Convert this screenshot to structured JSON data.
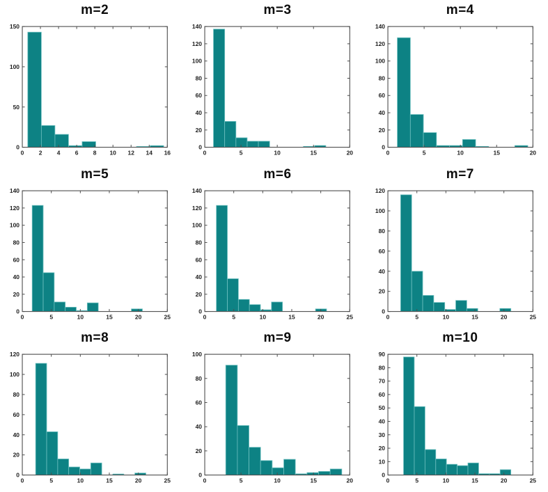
{
  "figure": {
    "background": "#ffffff",
    "bar_fill": "#0d8284",
    "bar_edge": "#6fc0c0",
    "axis_color": "#4d4d4d",
    "title_color": "#0d0d0d"
  },
  "chart_data": [
    {
      "type": "bar",
      "title": "m=2",
      "xlim": [
        0,
        16
      ],
      "ylim": [
        0,
        150
      ],
      "xticks": [
        0,
        2,
        4,
        6,
        8,
        10,
        12,
        14,
        16
      ],
      "yticks": [
        0,
        50,
        100,
        150
      ],
      "bin_start": 0.6,
      "bin_width": 1.5,
      "values": [
        143,
        27,
        16,
        2,
        7,
        0,
        0,
        0,
        1,
        2
      ],
      "xlabel": "",
      "ylabel": "",
      "grid": false,
      "legend": null
    },
    {
      "type": "bar",
      "title": "m=3",
      "xlim": [
        0,
        20
      ],
      "ylim": [
        0,
        140
      ],
      "xticks": [
        0,
        5,
        10,
        15,
        20
      ],
      "yticks": [
        0,
        20,
        40,
        60,
        80,
        100,
        120,
        140
      ],
      "bin_start": 1.2,
      "bin_width": 1.55,
      "values": [
        137,
        30,
        11,
        7,
        7,
        0,
        0,
        0,
        1,
        2
      ],
      "xlabel": "",
      "ylabel": "",
      "grid": false,
      "legend": null
    },
    {
      "type": "bar",
      "title": "m=4",
      "xlim": [
        0,
        20
      ],
      "ylim": [
        0,
        140
      ],
      "xticks": [
        0,
        5,
        10,
        15,
        20
      ],
      "yticks": [
        0,
        20,
        40,
        60,
        80,
        100,
        120,
        140
      ],
      "bin_start": 1.3,
      "bin_width": 1.8,
      "values": [
        127,
        38,
        17,
        2,
        2,
        9,
        1,
        0,
        0,
        2
      ],
      "xlabel": "",
      "ylabel": "",
      "grid": false,
      "legend": null
    },
    {
      "type": "bar",
      "title": "m=5",
      "xlim": [
        0,
        25
      ],
      "ylim": [
        0,
        140
      ],
      "xticks": [
        0,
        5,
        10,
        15,
        20,
        25
      ],
      "yticks": [
        0,
        20,
        40,
        60,
        80,
        100,
        120,
        140
      ],
      "bin_start": 1.7,
      "bin_width": 1.9,
      "values": [
        123,
        45,
        11,
        5,
        1,
        10,
        0,
        0,
        0,
        3
      ],
      "xlabel": "",
      "ylabel": "",
      "grid": false,
      "legend": null
    },
    {
      "type": "bar",
      "title": "m=6",
      "xlim": [
        0,
        25
      ],
      "ylim": [
        0,
        140
      ],
      "xticks": [
        0,
        5,
        10,
        15,
        20,
        25
      ],
      "yticks": [
        0,
        20,
        40,
        60,
        80,
        100,
        120,
        140
      ],
      "bin_start": 2.0,
      "bin_width": 1.9,
      "values": [
        123,
        38,
        14,
        8,
        2,
        11,
        0,
        0,
        0,
        3
      ],
      "xlabel": "",
      "ylabel": "",
      "grid": false,
      "legend": null
    },
    {
      "type": "bar",
      "title": "m=7",
      "xlim": [
        0,
        25
      ],
      "ylim": [
        0,
        120
      ],
      "xticks": [
        0,
        5,
        10,
        15,
        20,
        25
      ],
      "yticks": [
        0,
        20,
        40,
        60,
        80,
        100,
        120
      ],
      "bin_start": 2.2,
      "bin_width": 1.9,
      "values": [
        116,
        40,
        16,
        9,
        2,
        11,
        3,
        0,
        0,
        3
      ],
      "xlabel": "",
      "ylabel": "",
      "grid": false,
      "legend": null
    },
    {
      "type": "bar",
      "title": "m=8",
      "xlim": [
        0,
        25
      ],
      "ylim": [
        0,
        120
      ],
      "xticks": [
        0,
        5,
        10,
        15,
        20,
        25
      ],
      "yticks": [
        0,
        20,
        40,
        60,
        80,
        100,
        120
      ],
      "bin_start": 2.3,
      "bin_width": 1.9,
      "values": [
        111,
        43,
        16,
        8,
        6,
        12,
        0,
        1,
        0,
        2
      ],
      "xlabel": "",
      "ylabel": "",
      "grid": false,
      "legend": null
    },
    {
      "type": "bar",
      "title": "m=9",
      "xlim": [
        0,
        20
      ],
      "ylim": [
        0,
        100
      ],
      "xticks": [
        0,
        5,
        10,
        15,
        20
      ],
      "yticks": [
        0,
        20,
        40,
        60,
        80,
        100
      ],
      "bin_start": 2.9,
      "bin_width": 1.6,
      "values": [
        91,
        41,
        23,
        12,
        6,
        13,
        1,
        2,
        3,
        5
      ],
      "xlabel": "",
      "ylabel": "",
      "grid": false,
      "legend": null
    },
    {
      "type": "bar",
      "title": "m=10",
      "xlim": [
        0,
        25
      ],
      "ylim": [
        0,
        90
      ],
      "xticks": [
        0,
        5,
        10,
        15,
        20,
        25
      ],
      "yticks": [
        0,
        10,
        20,
        30,
        40,
        50,
        60,
        70,
        80,
        90
      ],
      "bin_start": 2.7,
      "bin_width": 1.85,
      "values": [
        88,
        51,
        19,
        12,
        8,
        7,
        9,
        1,
        1,
        4
      ],
      "xlabel": "",
      "ylabel": "",
      "grid": false,
      "legend": null
    }
  ]
}
